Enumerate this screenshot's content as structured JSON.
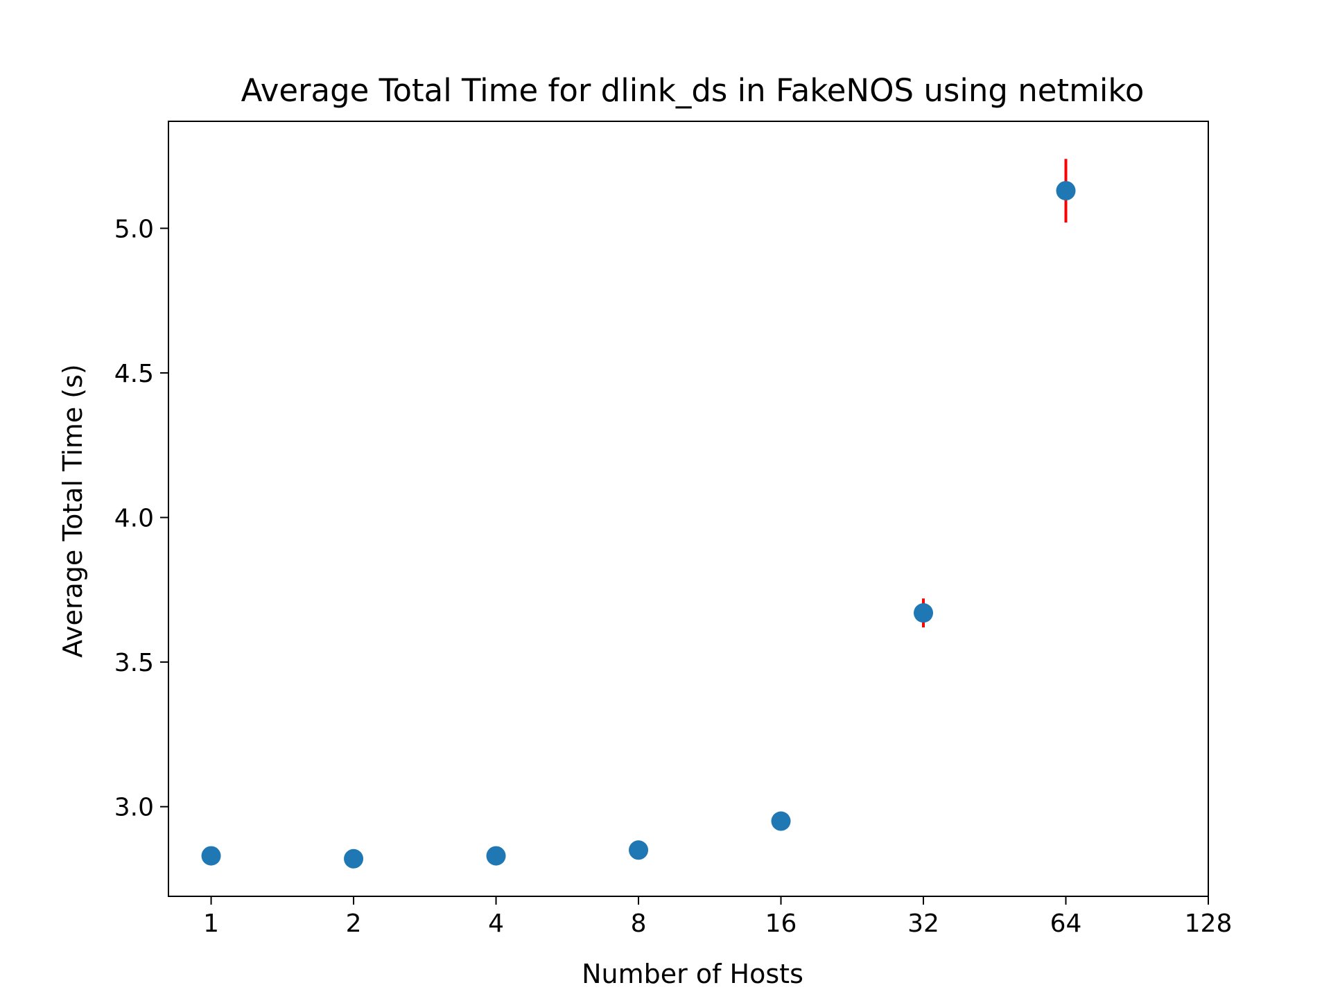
{
  "chart_data": {
    "type": "scatter",
    "title": "Average Total Time for dlink_ds in FakeNOS using netmiko",
    "xlabel": "Number of Hosts",
    "ylabel": "Average Total Time (s)",
    "x_scale": "log2",
    "x_ticks": [
      1,
      2,
      4,
      8,
      16,
      32,
      64,
      128
    ],
    "x_tick_labels": [
      "1",
      "2",
      "4",
      "8",
      "16",
      "32",
      "64",
      "128"
    ],
    "xlim": [
      0.8125,
      128
    ],
    "y_ticks": [
      3.0,
      3.5,
      4.0,
      4.5,
      5.0
    ],
    "y_tick_labels": [
      "3.0",
      "3.5",
      "4.0",
      "4.5",
      "5.0"
    ],
    "ylim": [
      2.69,
      5.37
    ],
    "grid": false,
    "legend": "none",
    "marker_color": "#1f77b4",
    "errorbar_color": "#ff0000",
    "points": [
      {
        "x": 1,
        "y": 2.83,
        "err": 0.0
      },
      {
        "x": 2,
        "y": 2.82,
        "err": 0.0
      },
      {
        "x": 4,
        "y": 2.83,
        "err": 0.0
      },
      {
        "x": 8,
        "y": 2.85,
        "err": 0.0
      },
      {
        "x": 16,
        "y": 2.95,
        "err": 0.03
      },
      {
        "x": 32,
        "y": 3.67,
        "err": 0.05
      },
      {
        "x": 64,
        "y": 5.13,
        "err": 0.11
      }
    ]
  }
}
